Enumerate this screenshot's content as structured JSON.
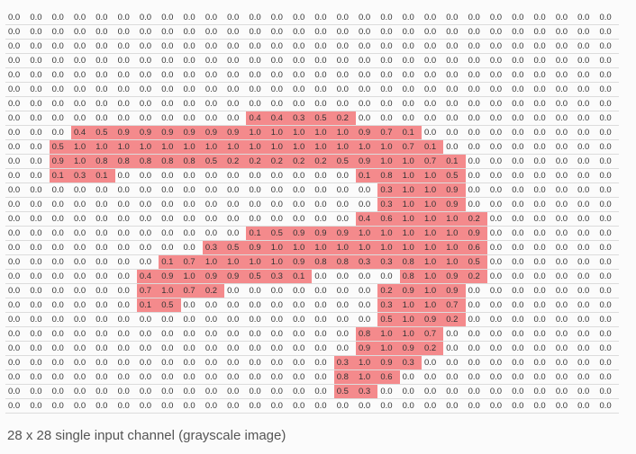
{
  "caption": "28 x 28 single input channel (grayscale image)",
  "colors": {
    "highlight": "#f48a8c",
    "text": "#333333",
    "background": "#fbfbfb"
  },
  "grid": [
    [
      "0.0",
      "0.0",
      "0.0",
      "0.0",
      "0.0",
      "0.0",
      "0.0",
      "0.0",
      "0.0",
      "0.0",
      "0.0",
      "0.0",
      "0.0",
      "0.0",
      "0.0",
      "0.0",
      "0.0",
      "0.0",
      "0.0",
      "0.0",
      "0.0",
      "0.0",
      "0.0",
      "0.0",
      "0.0",
      "0.0",
      "0.0",
      "0.0"
    ],
    [
      "0.0",
      "0.0",
      "0.0",
      "0.0",
      "0.0",
      "0.0",
      "0.0",
      "0.0",
      "0.0",
      "0.0",
      "0.0",
      "0.0",
      "0.0",
      "0.0",
      "0.0",
      "0.0",
      "0.0",
      "0.0",
      "0.0",
      "0.0",
      "0.0",
      "0.0",
      "0.0",
      "0.0",
      "0.0",
      "0.0",
      "0.0",
      "0.0"
    ],
    [
      "0.0",
      "0.0",
      "0.0",
      "0.0",
      "0.0",
      "0.0",
      "0.0",
      "0.0",
      "0.0",
      "0.0",
      "0.0",
      "0.0",
      "0.0",
      "0.0",
      "0.0",
      "0.0",
      "0.0",
      "0.0",
      "0.0",
      "0.0",
      "0.0",
      "0.0",
      "0.0",
      "0.0",
      "0.0",
      "0.0",
      "0.0",
      "0.0"
    ],
    [
      "0.0",
      "0.0",
      "0.0",
      "0.0",
      "0.0",
      "0.0",
      "0.0",
      "0.0",
      "0.0",
      "0.0",
      "0.0",
      "0.0",
      "0.0",
      "0.0",
      "0.0",
      "0.0",
      "0.0",
      "0.0",
      "0.0",
      "0.0",
      "0.0",
      "0.0",
      "0.0",
      "0.0",
      "0.0",
      "0.0",
      "0.0",
      "0.0"
    ],
    [
      "0.0",
      "0.0",
      "0.0",
      "0.0",
      "0.0",
      "0.0",
      "0.0",
      "0.0",
      "0.0",
      "0.0",
      "0.0",
      "0.0",
      "0.0",
      "0.0",
      "0.0",
      "0.0",
      "0.0",
      "0.0",
      "0.0",
      "0.0",
      "0.0",
      "0.0",
      "0.0",
      "0.0",
      "0.0",
      "0.0",
      "0.0",
      "0.0"
    ],
    [
      "0.0",
      "0.0",
      "0.0",
      "0.0",
      "0.0",
      "0.0",
      "0.0",
      "0.0",
      "0.0",
      "0.0",
      "0.0",
      "0.0",
      "0.0",
      "0.0",
      "0.0",
      "0.0",
      "0.0",
      "0.0",
      "0.0",
      "0.0",
      "0.0",
      "0.0",
      "0.0",
      "0.0",
      "0.0",
      "0.0",
      "0.0",
      "0.0"
    ],
    [
      "0.0",
      "0.0",
      "0.0",
      "0.0",
      "0.0",
      "0.0",
      "0.0",
      "0.0",
      "0.0",
      "0.0",
      "0.0",
      "0.0",
      "0.0",
      "0.0",
      "0.0",
      "0.0",
      "0.0",
      "0.0",
      "0.0",
      "0.0",
      "0.0",
      "0.0",
      "0.0",
      "0.0",
      "0.0",
      "0.0",
      "0.0",
      "0.0"
    ],
    [
      "0.0",
      "0.0",
      "0.0",
      "0.0",
      "0.0",
      "0.0",
      "0.0",
      "0.0",
      "0.0",
      "0.0",
      "0.0",
      "0.4",
      "0.4",
      "0.3",
      "0.5",
      "0.2",
      "0.0",
      "0.0",
      "0.0",
      "0.0",
      "0.0",
      "0.0",
      "0.0",
      "0.0",
      "0.0",
      "0.0",
      "0.0",
      "0.0"
    ],
    [
      "0.0",
      "0.0",
      "0.0",
      "0.4",
      "0.5",
      "0.9",
      "0.9",
      "0.9",
      "0.9",
      "0.9",
      "0.9",
      "1.0",
      "1.0",
      "1.0",
      "1.0",
      "1.0",
      "0.9",
      "0.7",
      "0.1",
      "0.0",
      "0.0",
      "0.0",
      "0.0",
      "0.0",
      "0.0",
      "0.0",
      "0.0",
      "0.0"
    ],
    [
      "0.0",
      "0.0",
      "0.5",
      "1.0",
      "1.0",
      "1.0",
      "1.0",
      "1.0",
      "1.0",
      "1.0",
      "1.0",
      "1.0",
      "1.0",
      "1.0",
      "1.0",
      "1.0",
      "1.0",
      "1.0",
      "0.7",
      "0.1",
      "0.0",
      "0.0",
      "0.0",
      "0.0",
      "0.0",
      "0.0",
      "0.0",
      "0.0"
    ],
    [
      "0.0",
      "0.0",
      "0.9",
      "1.0",
      "0.8",
      "0.8",
      "0.8",
      "0.8",
      "0.8",
      "0.5",
      "0.2",
      "0.2",
      "0.2",
      "0.2",
      "0.2",
      "0.5",
      "0.9",
      "1.0",
      "1.0",
      "0.7",
      "0.1",
      "0.0",
      "0.0",
      "0.0",
      "0.0",
      "0.0",
      "0.0",
      "0.0"
    ],
    [
      "0.0",
      "0.0",
      "0.1",
      "0.3",
      "0.1",
      "0.0",
      "0.0",
      "0.0",
      "0.0",
      "0.0",
      "0.0",
      "0.0",
      "0.0",
      "0.0",
      "0.0",
      "0.0",
      "0.1",
      "0.8",
      "1.0",
      "1.0",
      "0.5",
      "0.0",
      "0.0",
      "0.0",
      "0.0",
      "0.0",
      "0.0",
      "0.0"
    ],
    [
      "0.0",
      "0.0",
      "0.0",
      "0.0",
      "0.0",
      "0.0",
      "0.0",
      "0.0",
      "0.0",
      "0.0",
      "0.0",
      "0.0",
      "0.0",
      "0.0",
      "0.0",
      "0.0",
      "0.0",
      "0.3",
      "1.0",
      "1.0",
      "0.9",
      "0.0",
      "0.0",
      "0.0",
      "0.0",
      "0.0",
      "0.0",
      "0.0"
    ],
    [
      "0.0",
      "0.0",
      "0.0",
      "0.0",
      "0.0",
      "0.0",
      "0.0",
      "0.0",
      "0.0",
      "0.0",
      "0.0",
      "0.0",
      "0.0",
      "0.0",
      "0.0",
      "0.0",
      "0.0",
      "0.3",
      "1.0",
      "1.0",
      "0.9",
      "0.0",
      "0.0",
      "0.0",
      "0.0",
      "0.0",
      "0.0",
      "0.0"
    ],
    [
      "0.0",
      "0.0",
      "0.0",
      "0.0",
      "0.0",
      "0.0",
      "0.0",
      "0.0",
      "0.0",
      "0.0",
      "0.0",
      "0.0",
      "0.0",
      "0.0",
      "0.0",
      "0.0",
      "0.4",
      "0.6",
      "1.0",
      "1.0",
      "1.0",
      "0.2",
      "0.0",
      "0.0",
      "0.0",
      "0.0",
      "0.0",
      "0.0"
    ],
    [
      "0.0",
      "0.0",
      "0.0",
      "0.0",
      "0.0",
      "0.0",
      "0.0",
      "0.0",
      "0.0",
      "0.0",
      "0.0",
      "0.1",
      "0.5",
      "0.9",
      "0.9",
      "0.9",
      "1.0",
      "1.0",
      "1.0",
      "1.0",
      "1.0",
      "0.9",
      "0.0",
      "0.0",
      "0.0",
      "0.0",
      "0.0",
      "0.0"
    ],
    [
      "0.0",
      "0.0",
      "0.0",
      "0.0",
      "0.0",
      "0.0",
      "0.0",
      "0.0",
      "0.0",
      "0.3",
      "0.5",
      "0.9",
      "1.0",
      "1.0",
      "1.0",
      "1.0",
      "1.0",
      "1.0",
      "1.0",
      "1.0",
      "1.0",
      "0.6",
      "0.0",
      "0.0",
      "0.0",
      "0.0",
      "0.0",
      "0.0"
    ],
    [
      "0.0",
      "0.0",
      "0.0",
      "0.0",
      "0.0",
      "0.0",
      "0.0",
      "0.1",
      "0.7",
      "1.0",
      "1.0",
      "1.0",
      "1.0",
      "0.9",
      "0.8",
      "0.8",
      "0.3",
      "0.3",
      "0.8",
      "1.0",
      "1.0",
      "0.5",
      "0.0",
      "0.0",
      "0.0",
      "0.0",
      "0.0",
      "0.0"
    ],
    [
      "0.0",
      "0.0",
      "0.0",
      "0.0",
      "0.0",
      "0.0",
      "0.4",
      "0.9",
      "1.0",
      "0.9",
      "0.9",
      "0.5",
      "0.3",
      "0.1",
      "0.0",
      "0.0",
      "0.0",
      "0.0",
      "0.8",
      "1.0",
      "0.9",
      "0.2",
      "0.0",
      "0.0",
      "0.0",
      "0.0",
      "0.0",
      "0.0"
    ],
    [
      "0.0",
      "0.0",
      "0.0",
      "0.0",
      "0.0",
      "0.0",
      "0.7",
      "1.0",
      "0.7",
      "0.2",
      "0.0",
      "0.0",
      "0.0",
      "0.0",
      "0.0",
      "0.0",
      "0.0",
      "0.2",
      "0.9",
      "1.0",
      "0.9",
      "0.0",
      "0.0",
      "0.0",
      "0.0",
      "0.0",
      "0.0",
      "0.0"
    ],
    [
      "0.0",
      "0.0",
      "0.0",
      "0.0",
      "0.0",
      "0.0",
      "0.1",
      "0.5",
      "0.0",
      "0.0",
      "0.0",
      "0.0",
      "0.0",
      "0.0",
      "0.0",
      "0.0",
      "0.0",
      "0.3",
      "1.0",
      "1.0",
      "0.7",
      "0.0",
      "0.0",
      "0.0",
      "0.0",
      "0.0",
      "0.0",
      "0.0"
    ],
    [
      "0.0",
      "0.0",
      "0.0",
      "0.0",
      "0.0",
      "0.0",
      "0.0",
      "0.0",
      "0.0",
      "0.0",
      "0.0",
      "0.0",
      "0.0",
      "0.0",
      "0.0",
      "0.0",
      "0.0",
      "0.5",
      "1.0",
      "0.9",
      "0.2",
      "0.0",
      "0.0",
      "0.0",
      "0.0",
      "0.0",
      "0.0",
      "0.0"
    ],
    [
      "0.0",
      "0.0",
      "0.0",
      "0.0",
      "0.0",
      "0.0",
      "0.0",
      "0.0",
      "0.0",
      "0.0",
      "0.0",
      "0.0",
      "0.0",
      "0.0",
      "0.0",
      "0.0",
      "0.8",
      "1.0",
      "1.0",
      "0.7",
      "0.0",
      "0.0",
      "0.0",
      "0.0",
      "0.0",
      "0.0",
      "0.0",
      "0.0"
    ],
    [
      "0.0",
      "0.0",
      "0.0",
      "0.0",
      "0.0",
      "0.0",
      "0.0",
      "0.0",
      "0.0",
      "0.0",
      "0.0",
      "0.0",
      "0.0",
      "0.0",
      "0.0",
      "0.0",
      "0.9",
      "1.0",
      "0.9",
      "0.2",
      "0.0",
      "0.0",
      "0.0",
      "0.0",
      "0.0",
      "0.0",
      "0.0",
      "0.0"
    ],
    [
      "0.0",
      "0.0",
      "0.0",
      "0.0",
      "0.0",
      "0.0",
      "0.0",
      "0.0",
      "0.0",
      "0.0",
      "0.0",
      "0.0",
      "0.0",
      "0.0",
      "0.0",
      "0.3",
      "1.0",
      "0.9",
      "0.3",
      "0.0",
      "0.0",
      "0.0",
      "0.0",
      "0.0",
      "0.0",
      "0.0",
      "0.0",
      "0.0"
    ],
    [
      "0.0",
      "0.0",
      "0.0",
      "0.0",
      "0.0",
      "0.0",
      "0.0",
      "0.0",
      "0.0",
      "0.0",
      "0.0",
      "0.0",
      "0.0",
      "0.0",
      "0.0",
      "0.8",
      "1.0",
      "0.6",
      "0.0",
      "0.0",
      "0.0",
      "0.0",
      "0.0",
      "0.0",
      "0.0",
      "0.0",
      "0.0",
      "0.0"
    ],
    [
      "0.0",
      "0.0",
      "0.0",
      "0.0",
      "0.0",
      "0.0",
      "0.0",
      "0.0",
      "0.0",
      "0.0",
      "0.0",
      "0.0",
      "0.0",
      "0.0",
      "0.0",
      "0.5",
      "0.3",
      "0.0",
      "0.0",
      "0.0",
      "0.0",
      "0.0",
      "0.0",
      "0.0",
      "0.0",
      "0.0",
      "0.0",
      "0.0"
    ],
    [
      "0.0",
      "0.0",
      "0.0",
      "0.0",
      "0.0",
      "0.0",
      "0.0",
      "0.0",
      "0.0",
      "0.0",
      "0.0",
      "0.0",
      "0.0",
      "0.0",
      "0.0",
      "0.0",
      "0.0",
      "0.0",
      "0.0",
      "0.0",
      "0.0",
      "0.0",
      "0.0",
      "0.0",
      "0.0",
      "0.0",
      "0.0",
      "0.0"
    ]
  ]
}
